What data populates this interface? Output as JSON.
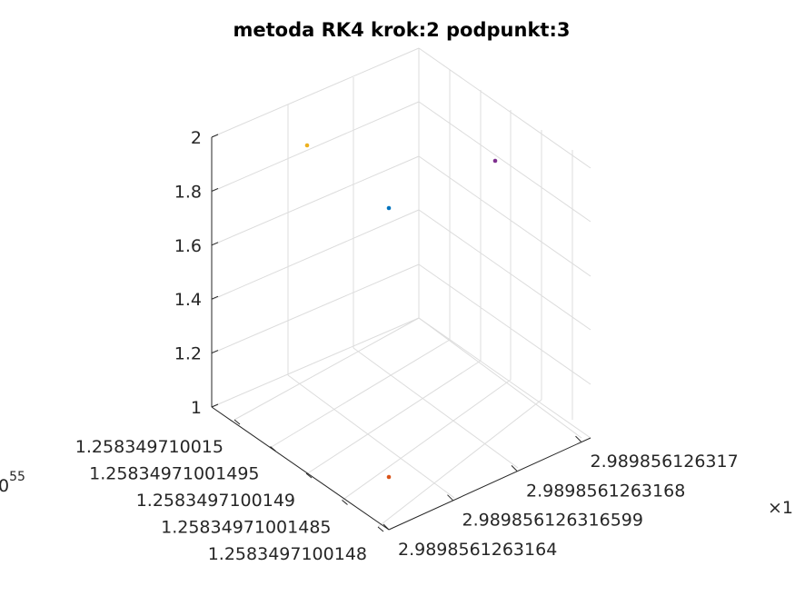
{
  "chart_data": {
    "type": "scatter",
    "title": "metoda RK4 krok:2 podpunkt:3",
    "xlabel": "",
    "ylabel": "",
    "zlabel": "",
    "x_exponent_label": "×1",
    "y_exponent_label": "0",
    "y_exponent_sup": "55",
    "z_ticks": [
      1,
      1.2,
      1.4,
      1.6,
      1.8,
      2
    ],
    "z_tick_labels": [
      "1",
      "1.2",
      "1.4",
      "1.6",
      "1.8",
      "2"
    ],
    "zlim": [
      1,
      2
    ],
    "x_tick_labels": [
      "2.9898561263164",
      "2.989856126316599",
      "2.9898561263168",
      "2.989856126317"
    ],
    "y_tick_labels": [
      "1.258349710015",
      "1.25834971001495",
      "1.2583497100149",
      "1.25834971001485",
      "1.2583497100148"
    ],
    "grid": true,
    "points": [
      {
        "color": "#0072BD",
        "x": 2.98985612631665,
        "y": 1.25834971001485,
        "z": 1.7
      },
      {
        "color": "#D95319",
        "x": 2.9898561263166,
        "y": 1.2583497100148,
        "z": 1.0
      },
      {
        "color": "#EDB120",
        "x": 2.9898561263164,
        "y": 1.2583497100149,
        "z": 2.0
      },
      {
        "color": "#7E2F8E",
        "x": 2.989856126317,
        "y": 1.2583497100148,
        "z": 2.0
      }
    ]
  }
}
